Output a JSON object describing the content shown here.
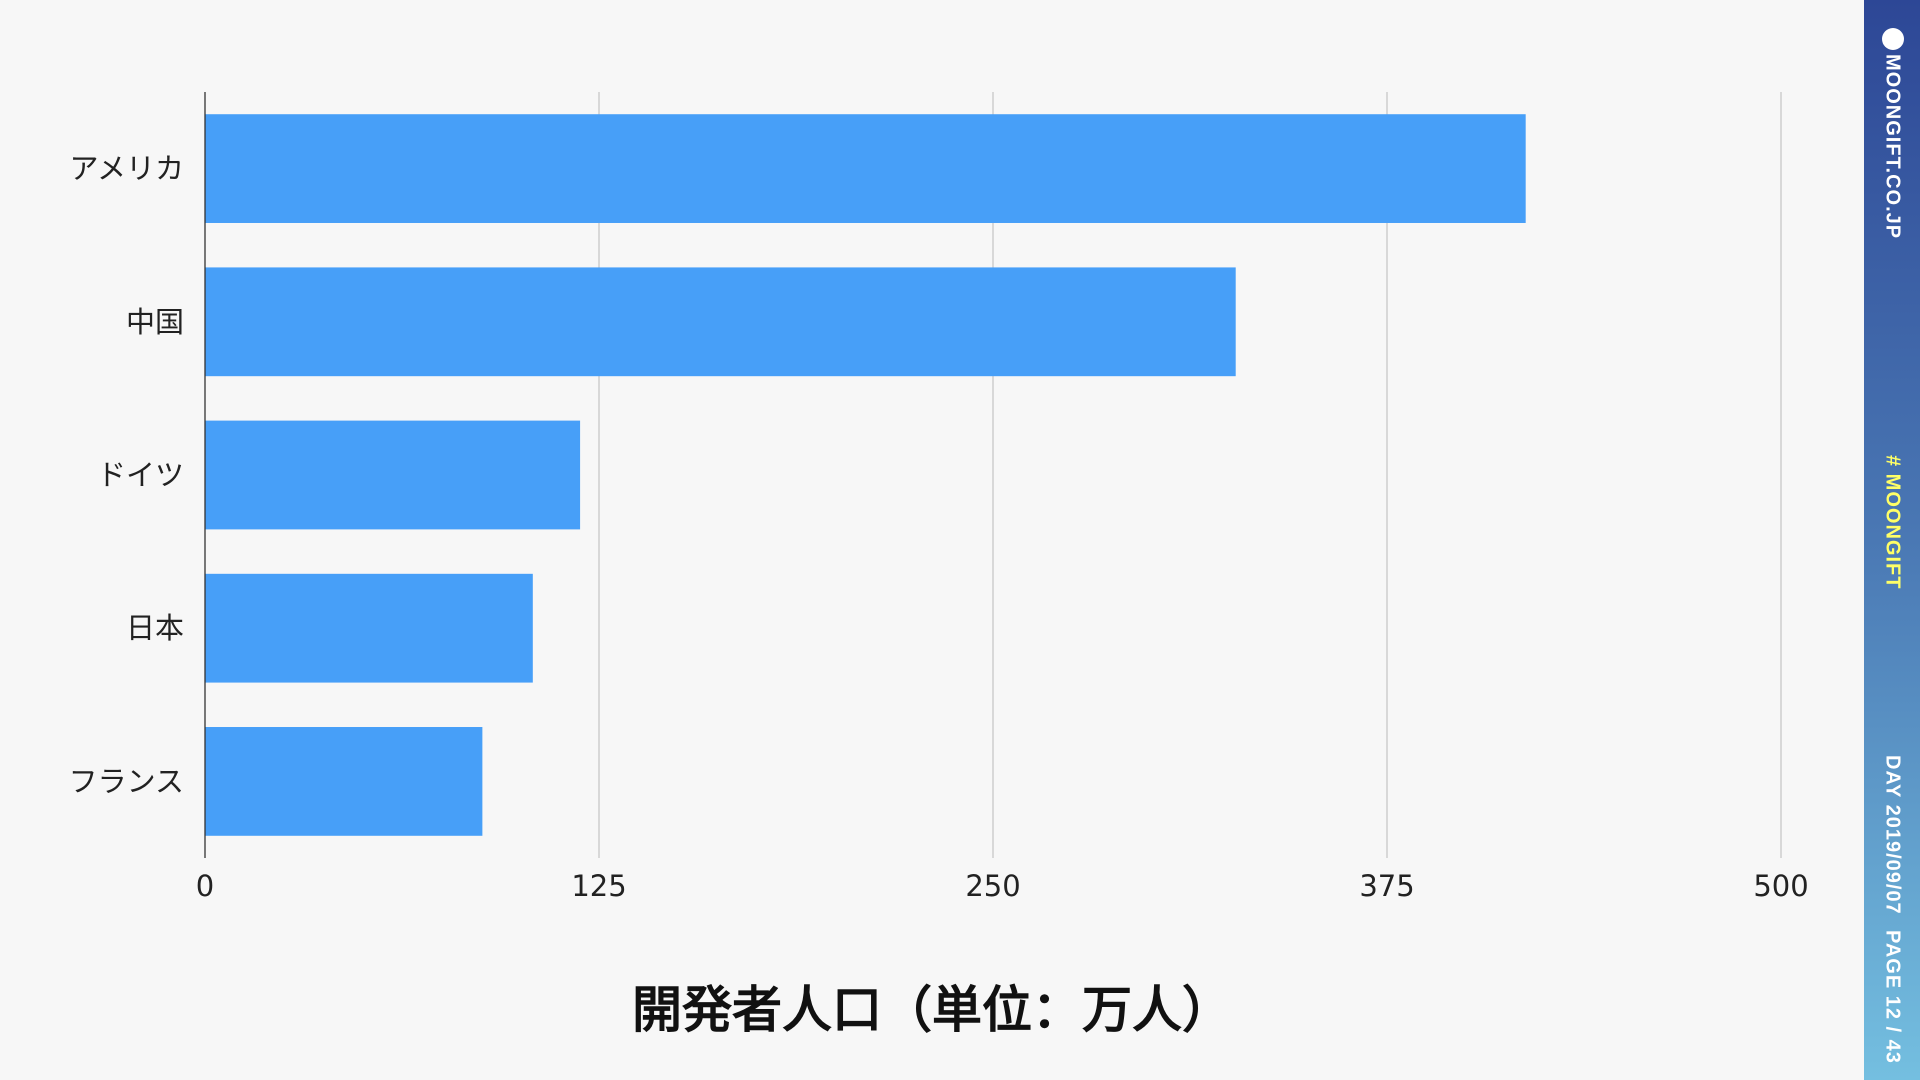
{
  "chart_data": {
    "type": "bar",
    "orientation": "horizontal",
    "title": "開発者人口（単位：万人）",
    "categories": [
      "アメリカ",
      "中国",
      "ドイツ",
      "日本",
      "フランス"
    ],
    "values": [
      419,
      327,
      119,
      104,
      88
    ],
    "xlim": [
      0,
      500
    ],
    "xticks": [
      "0",
      "125",
      "250",
      "375",
      "500"
    ],
    "grid": true,
    "bar_color": "#479ff8"
  },
  "sidebar": {
    "site": "MOONGIFT.CO.JP",
    "hashtag": "# MOONGIFT",
    "date": "DAY 2019/09/07",
    "page": "PAGE 12 / 43",
    "hashtag_color": "#ffff66"
  }
}
